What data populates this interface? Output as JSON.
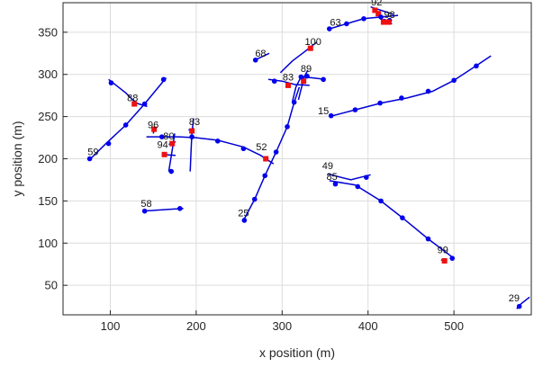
{
  "chart_data": {
    "type": "scatter",
    "title": "",
    "xlabel": "x position (m)",
    "ylabel": "y position (m)",
    "xlim": [
      45,
      590
    ],
    "ylim": [
      15,
      385
    ],
    "xticks": [
      100,
      200,
      300,
      400,
      500
    ],
    "yticks": [
      50,
      100,
      150,
      200,
      250,
      300,
      350
    ],
    "grid": true,
    "colors": {
      "track": "#0000d4",
      "marker_blue": "#0000ee",
      "marker_red": "#ee1111",
      "grid": "#dcdcdc",
      "axis": "#262626"
    },
    "tracks": [
      {
        "label": "92",
        "label_pos": [
          410,
          382
        ],
        "line": [
          [
            403,
            380
          ],
          [
            430,
            371
          ]
        ],
        "blue": [],
        "red": [
          [
            408,
            376
          ],
          [
            412,
            372
          ]
        ]
      },
      {
        "label": "98",
        "label_pos": [
          425,
          367
        ],
        "line": [
          [
            414,
            366
          ],
          [
            428,
            360
          ]
        ],
        "blue": [
          [
            419,
            363
          ],
          [
            425,
            364
          ]
        ],
        "red": [
          [
            418,
            362
          ],
          [
            424,
            362
          ]
        ]
      },
      {
        "label": "63",
        "label_pos": [
          362,
          358
        ],
        "line": [
          [
            355,
            354
          ],
          [
            375,
            360
          ],
          [
            395,
            366
          ],
          [
            415,
            368
          ],
          [
            435,
            370
          ]
        ],
        "blue": [
          [
            355,
            354
          ],
          [
            375,
            360
          ],
          [
            395,
            366
          ],
          [
            415,
            368
          ]
        ],
        "red": []
      },
      {
        "label": "100",
        "label_pos": [
          336,
          335
        ],
        "line": [
          [
            298,
            302
          ],
          [
            312,
            316
          ],
          [
            325,
            326
          ],
          [
            340,
            338
          ]
        ],
        "blue": [],
        "red": [
          [
            333,
            331
          ]
        ]
      },
      {
        "label": "68",
        "label_pos": [
          275,
          321
        ],
        "line": [
          [
            268,
            317
          ],
          [
            285,
            325
          ]
        ],
        "blue": [
          [
            269,
            317
          ]
        ],
        "red": []
      },
      {
        "label": "89",
        "label_pos": [
          328,
          303
        ],
        "line": [
          [
            319,
            270
          ],
          [
            323,
            286
          ],
          [
            326,
            298
          ],
          [
            330,
            305
          ]
        ],
        "blue": [],
        "red": [
          [
            325,
            292
          ]
        ]
      },
      {
        "label": "83",
        "label_pos": [
          307,
          293
        ],
        "line": [
          [
            284,
            294
          ],
          [
            300,
            292
          ],
          [
            315,
            288
          ],
          [
            332,
            287
          ]
        ],
        "blue": [
          [
            291,
            292
          ]
        ],
        "red": [
          [
            307,
            287
          ]
        ]
      },
      {
        "label": "",
        "label_pos": [
          0,
          0
        ],
        "line": [
          [
            312,
            268
          ],
          [
            316,
            285
          ],
          [
            322,
            297
          ],
          [
            335,
            296
          ],
          [
            350,
            294
          ]
        ],
        "blue": [
          [
            322,
            297
          ],
          [
            329,
            298
          ],
          [
            348,
            294
          ]
        ],
        "red": []
      },
      {
        "label": "88",
        "label_pos": [
          126,
          268
        ],
        "line": [
          [
            98,
            294
          ],
          [
            118,
            278
          ],
          [
            130,
            266
          ],
          [
            143,
            262
          ]
        ],
        "blue": [
          [
            101,
            290
          ]
        ],
        "red": [
          [
            128,
            265
          ]
        ]
      },
      {
        "label": "15",
        "label_pos": [
          348,
          253
        ],
        "line": [
          [
            355,
            250
          ],
          [
            385,
            258
          ],
          [
            415,
            266
          ],
          [
            445,
            272
          ],
          [
            475,
            280
          ],
          [
            500,
            293
          ],
          [
            527,
            311
          ],
          [
            543,
            322
          ]
        ],
        "blue": [
          [
            357,
            251
          ],
          [
            385,
            258
          ],
          [
            414,
            266
          ],
          [
            439,
            272
          ],
          [
            470,
            280
          ],
          [
            500,
            293
          ],
          [
            526,
            310
          ]
        ],
        "red": []
      },
      {
        "label": "59",
        "label_pos": [
          80,
          204
        ],
        "line": [
          [
            75,
            198
          ],
          [
            95,
            218
          ],
          [
            118,
            240
          ],
          [
            140,
            265
          ],
          [
            165,
            296
          ]
        ],
        "blue": [
          [
            76,
            200
          ],
          [
            98,
            218
          ],
          [
            118,
            240
          ],
          [
            140,
            265
          ],
          [
            162,
            294
          ]
        ],
        "red": []
      },
      {
        "label": "96",
        "label_pos": [
          150,
          236
        ],
        "line": [
          [
            150,
            230
          ],
          [
            152,
            238
          ]
        ],
        "blue": [],
        "red": [
          [
            151,
            235
          ]
        ]
      },
      {
        "label": "83",
        "label_pos": [
          198,
          240
        ],
        "line": [
          [
            191,
            234
          ],
          [
            197,
            236
          ]
        ],
        "blue": [],
        "red": [
          [
            195,
            233
          ]
        ]
      },
      {
        "label": "",
        "label_pos": [
          0,
          0
        ],
        "line": [
          [
            142,
            226
          ],
          [
            180,
            226
          ],
          [
            200,
            225
          ],
          [
            225,
            222
          ],
          [
            255,
            214
          ],
          [
            275,
            204
          ],
          [
            290,
            194
          ]
        ],
        "blue": [
          [
            160,
            226
          ],
          [
            195,
            226
          ],
          [
            225,
            221
          ],
          [
            255,
            212
          ]
        ],
        "red": [
          [
            281,
            200
          ]
        ]
      },
      {
        "label": "52",
        "label_pos": [
          276,
          210
        ],
        "line": [],
        "blue": [],
        "red": []
      },
      {
        "label": "80",
        "label_pos": [
          168,
          223
        ],
        "line": [
          [
            168,
            217
          ],
          [
            176,
            220
          ]
        ],
        "blue": [],
        "red": [
          [
            172,
            218
          ]
        ]
      },
      {
        "label": "94",
        "label_pos": [
          161,
          213
        ],
        "line": [
          [
            160,
            205
          ],
          [
            176,
            204
          ]
        ],
        "blue": [],
        "red": [
          [
            163,
            205
          ]
        ]
      },
      {
        "label": "",
        "label_pos": [
          0,
          0
        ],
        "line": [
          [
            168,
            185
          ],
          [
            172,
            210
          ],
          [
            175,
            230
          ]
        ],
        "blue": [
          [
            171,
            185
          ]
        ],
        "red": []
      },
      {
        "label": "",
        "label_pos": [
          0,
          0
        ],
        "line": [
          [
            193,
            185
          ],
          [
            194,
            210
          ],
          [
            195,
            230
          ],
          [
            197,
            248
          ]
        ],
        "blue": [],
        "red": []
      },
      {
        "label": "25",
        "label_pos": [
          255,
          132
        ],
        "line": [
          [
            255,
            127
          ],
          [
            268,
            152
          ],
          [
            280,
            180
          ],
          [
            293,
            208
          ],
          [
            306,
            238
          ],
          [
            314,
            267
          ],
          [
            320,
            285
          ]
        ],
        "blue": [
          [
            256,
            127
          ],
          [
            268,
            152
          ],
          [
            280,
            180
          ],
          [
            293,
            208
          ],
          [
            306,
            238
          ],
          [
            314,
            267
          ]
        ],
        "red": []
      },
      {
        "label": "49",
        "label_pos": [
          353,
          188
        ],
        "line": [
          [
            353,
            182
          ],
          [
            380,
            175
          ],
          [
            403,
            181
          ]
        ],
        "blue": [
          [
            398,
            178
          ]
        ],
        "red": []
      },
      {
        "label": "85",
        "label_pos": [
          358,
          175
        ],
        "line": [
          [
            355,
            174
          ],
          [
            385,
            169
          ],
          [
            415,
            150
          ],
          [
            440,
            130
          ],
          [
            470,
            105
          ],
          [
            500,
            82
          ]
        ],
        "blue": [
          [
            362,
            170
          ],
          [
            388,
            167
          ],
          [
            415,
            150
          ],
          [
            440,
            130
          ],
          [
            470,
            105
          ],
          [
            498,
            82
          ]
        ],
        "red": []
      },
      {
        "label": "99",
        "label_pos": [
          487,
          88
        ],
        "line": [
          [
            485,
            80
          ],
          [
            492,
            79
          ]
        ],
        "blue": [],
        "red": [
          [
            489,
            79
          ]
        ]
      },
      {
        "label": "58",
        "label_pos": [
          142,
          143
        ],
        "line": [
          [
            139,
            138
          ],
          [
            168,
            140
          ],
          [
            185,
            141
          ]
        ],
        "blue": [
          [
            140,
            138
          ],
          [
            181,
            141
          ]
        ],
        "red": []
      },
      {
        "label": "29",
        "label_pos": [
          570,
          31
        ],
        "line": [
          [
            573,
            22
          ],
          [
            578,
            28
          ],
          [
            588,
            36
          ]
        ],
        "blue": [
          [
            576,
            25
          ]
        ],
        "red": []
      }
    ]
  }
}
